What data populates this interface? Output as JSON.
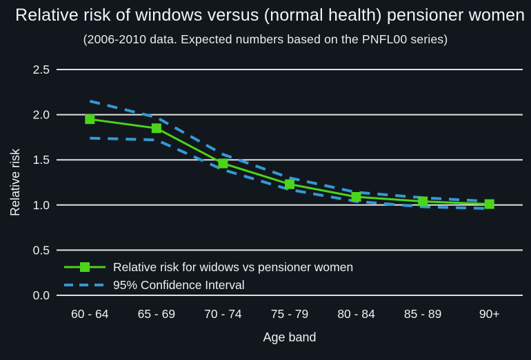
{
  "title": "Relative risk of windows versus (normal health) pensioner women",
  "subtitle": "(2006-2010 data. Expected numbers based on the PNFL00 series)",
  "colors": {
    "background": "#12171d",
    "text": "#f0f0f0",
    "gridline": "#e2e2e2",
    "series_green": "#4cd41a",
    "ci_blue": "#3399d4"
  },
  "chart_data": {
    "type": "line",
    "title": "Relative risk of windows versus (normal health) pensioner women",
    "subtitle": "(2006-2010 data. Expected numbers based on the PNFL00 series)",
    "categories": [
      "60 - 64",
      "65 - 69",
      "70 - 74",
      "75 - 79",
      "80 - 84",
      "85 - 89",
      "90+"
    ],
    "series": [
      {
        "name": "Relative risk for widows vs pensioner women",
        "style": "solid-square",
        "color": "#4cd41a",
        "values": [
          1.95,
          1.85,
          1.46,
          1.23,
          1.09,
          1.04,
          1.01
        ]
      },
      {
        "name": "95% Confidence Interval (upper bound)",
        "style": "dashed",
        "color": "#3399d4",
        "values": [
          2.15,
          1.97,
          1.56,
          1.3,
          1.14,
          1.08,
          1.04
        ]
      },
      {
        "name": "95% Confidence Interval (lower bound)",
        "style": "dashed",
        "color": "#3399d4",
        "values": [
          1.74,
          1.72,
          1.39,
          1.17,
          1.04,
          0.98,
          0.96
        ]
      }
    ],
    "legend": [
      {
        "label": "Relative risk for widows vs pensioner women",
        "style": "solid-square"
      },
      {
        "label": "95% Confidence Interval",
        "style": "dashed"
      }
    ],
    "legend_position": "inside-bottom-left",
    "xlabel": "Age band",
    "ylabel": "Relative risk",
    "ylim": [
      0.0,
      2.5
    ],
    "yticks": [
      0.0,
      0.5,
      1.0,
      1.5,
      2.0,
      2.5
    ],
    "ytick_labels": [
      "0.0",
      "0.5",
      "1.0",
      "1.5",
      "2.0",
      "2.5"
    ],
    "grid": "horizontal"
  }
}
